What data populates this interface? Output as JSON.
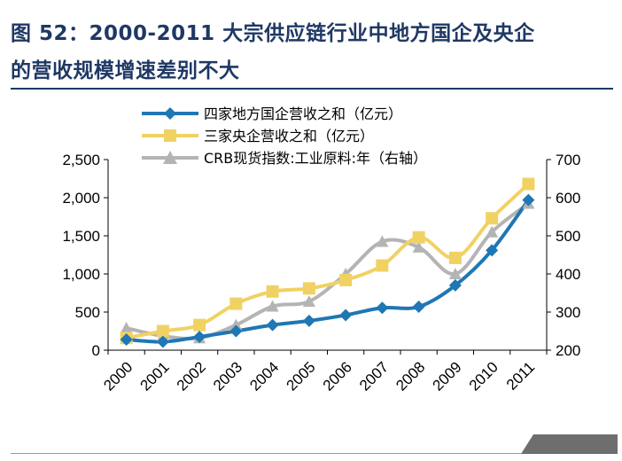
{
  "header": {
    "title_line1": "图 52：2000-2011 大宗供应链行业中地方国企及央企",
    "title_line2": "的营收规模增速差别不大"
  },
  "chart_data": {
    "type": "line",
    "categories": [
      "2000",
      "2001",
      "2002",
      "2003",
      "2004",
      "2005",
      "2006",
      "2007",
      "2008",
      "2009",
      "2010",
      "2011"
    ],
    "series": [
      {
        "name": "四家地方国企营收之和（亿元）",
        "axis": "left",
        "color": "#1f77b4",
        "marker": "diamond",
        "values": [
          140,
          110,
          175,
          250,
          330,
          385,
          460,
          555,
          570,
          850,
          1310,
          1970
        ]
      },
      {
        "name": "三家央企营收之和（亿元）",
        "axis": "left",
        "color": "#f0d264",
        "marker": "square",
        "values": [
          160,
          250,
          330,
          610,
          770,
          810,
          920,
          1110,
          1480,
          1210,
          1730,
          2180
        ]
      },
      {
        "name": "CRB现货指数:工业原料:年（右轴）",
        "axis": "right",
        "color": "#b4b4b4",
        "marker": "triangle",
        "values": [
          258,
          237,
          232,
          266,
          315,
          328,
          400,
          485,
          470,
          400,
          510,
          585
        ]
      }
    ],
    "y_left": {
      "ylim": [
        0,
        2500
      ],
      "ticks": [
        0,
        500,
        1000,
        1500,
        2000,
        2500
      ],
      "tick_labels": [
        "0",
        "500",
        "1,000",
        "1,500",
        "2,000",
        "2,500"
      ]
    },
    "y_right": {
      "ylim": [
        200,
        700
      ],
      "ticks": [
        200,
        300,
        400,
        500,
        600,
        700
      ],
      "tick_labels": [
        "200",
        "300",
        "400",
        "500",
        "600",
        "700"
      ]
    },
    "legend_position": "top",
    "grid": false
  }
}
